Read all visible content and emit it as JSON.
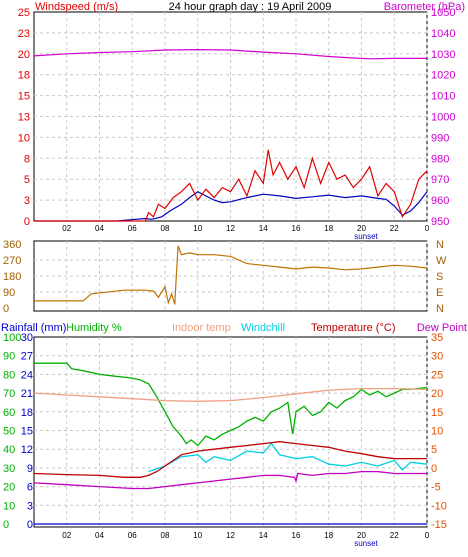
{
  "chart_data": [
    {
      "type": "line",
      "title": "24 hour graph day : 19 April 2009",
      "left_axis_title": "Windspeed (m/s)",
      "right_axis_title": "Barometer (hPa)",
      "sunset_label": "sunset",
      "x_ticks": [
        "02",
        "04",
        "06",
        "08",
        "10",
        "12",
        "14",
        "16",
        "18",
        "20",
        "22",
        "0"
      ],
      "x_range_hours": [
        0,
        24
      ],
      "y_left_ticks": [
        "0",
        "3",
        "5",
        "8",
        "10",
        "13",
        "15",
        "18",
        "20",
        "23",
        "25"
      ],
      "y_left_range": [
        0,
        25
      ],
      "y_right_ticks": [
        "950",
        "960",
        "970",
        "980",
        "990",
        "1000",
        "1010",
        "1020",
        "1030",
        "1040",
        "1050"
      ],
      "y_right_range": [
        950,
        1050
      ],
      "grid": true,
      "colors": {
        "gust": "#e00000",
        "wind": "#0000c0",
        "barometer": "#d000d0",
        "left_axis": "#e00000",
        "right_axis": "#d000d0"
      },
      "series": [
        {
          "name": "barometer",
          "axis": "right",
          "x": [
            -1.0,
            2,
            4,
            6,
            8,
            10,
            12,
            13,
            14,
            16,
            18,
            19.5,
            20.5,
            22,
            24
          ],
          "y": [
            1029.0,
            1030.0,
            1030.6,
            1031.0,
            1031.8,
            1032.0,
            1031.8,
            1031.3,
            1030.8,
            1030.0,
            1028.7,
            1028.0,
            1027.6,
            1027.8,
            1027.8
          ]
        },
        {
          "name": "wind speed",
          "axis": "left",
          "x": [
            -1.0,
            5.0,
            6.8,
            7.2,
            7.8,
            8.3,
            9.0,
            9.5,
            10.0,
            10.5,
            11.0,
            11.5,
            12.0,
            13.0,
            14.0,
            15.0,
            16.0,
            17.0,
            18.0,
            19.0,
            20.0,
            21.0,
            21.5,
            22.0,
            22.5,
            23.0,
            23.5,
            24.0
          ],
          "y": [
            0,
            0,
            0.3,
            0.2,
            0.5,
            1.2,
            2.0,
            2.8,
            3.5,
            3.0,
            2.5,
            2.2,
            2.3,
            2.8,
            3.2,
            3.0,
            2.7,
            2.9,
            3.1,
            2.8,
            3.0,
            2.7,
            2.6,
            1.8,
            0.7,
            1.2,
            2.2,
            3.5
          ]
        },
        {
          "name": "wind gust",
          "axis": "left",
          "x": [
            -1.0,
            6.8,
            7.0,
            7.3,
            7.6,
            8.0,
            8.5,
            9.0,
            9.5,
            10.0,
            10.5,
            11.0,
            11.5,
            12.0,
            12.5,
            13.0,
            13.5,
            14.0,
            14.3,
            14.6,
            15.0,
            15.5,
            16.0,
            16.5,
            17.0,
            17.5,
            18.0,
            18.5,
            19.0,
            19.5,
            20.0,
            20.5,
            21.0,
            21.5,
            22.0,
            22.5,
            23.0,
            23.5,
            24.0
          ],
          "y": [
            0,
            0,
            1.0,
            0.5,
            2.0,
            1.5,
            2.8,
            3.5,
            4.5,
            2.5,
            3.8,
            2.8,
            4.0,
            3.5,
            5.0,
            3.0,
            6.0,
            4.5,
            8.5,
            5.5,
            7.0,
            5.0,
            6.5,
            4.0,
            7.5,
            4.5,
            7.0,
            5.0,
            5.5,
            4.0,
            5.0,
            6.5,
            3.0,
            4.5,
            3.5,
            0.5,
            2.0,
            5.0,
            6.0
          ]
        }
      ]
    },
    {
      "type": "line",
      "left_ticks": [
        "360",
        "270",
        "180",
        "90",
        "0"
      ],
      "y_range": [
        0,
        360
      ],
      "right_labels": [
        "N",
        "W",
        "S",
        "E",
        "N"
      ],
      "x_range_hours": [
        0,
        24
      ],
      "colors": {
        "direction": "#c07000",
        "axis": "#a06000"
      },
      "series": [
        {
          "name": "wind direction",
          "x": [
            -1.0,
            2.5,
            3.0,
            3.5,
            5.5,
            6.0,
            6.8,
            7.3,
            7.6,
            8.0,
            8.2,
            8.4,
            8.6,
            8.7,
            8.8,
            9.0,
            9.5,
            10.0,
            11.0,
            12.0,
            12.5,
            13.0,
            14.0,
            15.0,
            16.0,
            17.0,
            18.0,
            19.0,
            20.0,
            21.0,
            22.0,
            23.0,
            24.0
          ],
          "y": [
            40,
            40,
            40,
            80,
            100,
            100,
            100,
            95,
            60,
            120,
            30,
            80,
            20,
            200,
            350,
            300,
            310,
            300,
            300,
            290,
            270,
            250,
            240,
            230,
            220,
            230,
            225,
            215,
            220,
            230,
            240,
            235,
            225
          ]
        }
      ]
    },
    {
      "type": "line",
      "legend": [
        "Rainfall (mm)",
        "Humidity %",
        "Indoor temp",
        "Windchill",
        "Temperature (°C)",
        "Dew Point"
      ],
      "sunset_label": "sunset",
      "x_ticks": [
        "02",
        "04",
        "06",
        "08",
        "10",
        "12",
        "14",
        "16",
        "18",
        "20",
        "22",
        "0"
      ],
      "x_range_hours": [
        0,
        24
      ],
      "axis_rain": {
        "ticks": [
          "0",
          "3",
          "6",
          "9",
          "12",
          "15",
          "18",
          "21",
          "24",
          "27",
          "30"
        ],
        "range": [
          0,
          30
        ]
      },
      "axis_humidity": {
        "ticks": [
          "0",
          "10",
          "20",
          "30",
          "40",
          "50",
          "60",
          "70",
          "80",
          "90",
          "100"
        ],
        "range": [
          0,
          100
        ]
      },
      "axis_temp": {
        "ticks": [
          "35",
          "30",
          "25",
          "20",
          "15",
          "10",
          "5",
          "0",
          "-5",
          "-10",
          "-15"
        ],
        "range": [
          -15,
          35
        ]
      },
      "grid": true,
      "colors": {
        "rain": "#0000d0",
        "humidity": "#00b000",
        "indoor": "#f0a080",
        "windchill": "#00d0e0",
        "temperature": "#c00000",
        "dewpoint": "#c000c0",
        "temp_axis": "#e05000"
      },
      "series": [
        {
          "name": "Humidity %",
          "axis": "humidity",
          "x": [
            -1.0,
            2.0,
            2.3,
            3.0,
            4.0,
            5.0,
            6.0,
            6.5,
            7.0,
            7.5,
            8.0,
            8.5,
            9.0,
            9.3,
            9.6,
            10.0,
            10.5,
            11.0,
            11.5,
            12.0,
            12.5,
            13.0,
            13.5,
            14.0,
            14.5,
            15.0,
            15.5,
            15.8,
            16.0,
            16.5,
            17.0,
            17.5,
            18.0,
            18.5,
            19.0,
            19.5,
            20.0,
            20.5,
            21.0,
            21.5,
            22.0,
            22.5,
            23.0,
            24.0
          ],
          "y": [
            86,
            86,
            83,
            82,
            80,
            79,
            78,
            77,
            75,
            68,
            60,
            52,
            47,
            43,
            45,
            42,
            47,
            45,
            48,
            50,
            52,
            55,
            57,
            55,
            60,
            62,
            65,
            48,
            60,
            63,
            58,
            60,
            65,
            62,
            66,
            68,
            72,
            69,
            71,
            68,
            70,
            72,
            72,
            73
          ]
        },
        {
          "name": "Indoor temp",
          "axis": "temp",
          "x": [
            -1.0,
            2.0,
            4.0,
            6.0,
            8.0,
            10.0,
            12.0,
            14.0,
            16.0,
            18.0,
            20.0,
            22.0,
            24.0
          ],
          "y": [
            20.0,
            19.5,
            19.0,
            18.5,
            18.0,
            17.8,
            18.0,
            18.8,
            19.8,
            20.8,
            21.2,
            21.2,
            21.0
          ]
        },
        {
          "name": "Windchill",
          "axis": "temp",
          "x": [
            7.0,
            8.0,
            9.0,
            10.0,
            10.5,
            11.0,
            12.0,
            13.0,
            14.0,
            14.5,
            15.0,
            16.0,
            17.0,
            18.0,
            19.0,
            20.0,
            21.0,
            22.0,
            22.5,
            23.0,
            24.0
          ],
          "y": [
            -1.0,
            0.5,
            3.0,
            3.5,
            1.5,
            3.0,
            2.0,
            4.5,
            4.0,
            6.5,
            3.5,
            2.5,
            3.0,
            1.0,
            0.5,
            1.5,
            0.5,
            2.0,
            -0.5,
            1.5,
            1.0
          ]
        },
        {
          "name": "Temperature (°C)",
          "axis": "temp",
          "x": [
            -1.0,
            2.0,
            4.0,
            5.5,
            6.5,
            7.0,
            7.5,
            8.0,
            8.5,
            9.0,
            10.0,
            11.0,
            12.0,
            13.0,
            14.0,
            15.0,
            16.0,
            17.0,
            18.0,
            19.0,
            20.0,
            21.0,
            22.0,
            24.0
          ],
          "y": [
            -1.5,
            -1.8,
            -2.0,
            -2.5,
            -2.5,
            -2.0,
            -1.0,
            0.5,
            2.0,
            3.5,
            4.5,
            5.0,
            5.5,
            6.0,
            6.5,
            7.0,
            6.5,
            6.0,
            5.5,
            4.5,
            3.8,
            3.0,
            2.5,
            2.5
          ]
        },
        {
          "name": "Dew Point",
          "axis": "temp",
          "x": [
            -1.0,
            2.0,
            4.0,
            6.0,
            7.0,
            8.0,
            9.0,
            10.0,
            11.0,
            12.0,
            13.0,
            14.0,
            15.0,
            15.9,
            16.0,
            16.1,
            17.0,
            18.0,
            19.0,
            20.0,
            21.0,
            22.0,
            24.0
          ],
          "y": [
            -4.0,
            -4.5,
            -5.0,
            -5.5,
            -5.5,
            -5.0,
            -4.5,
            -4.0,
            -3.5,
            -3.0,
            -2.5,
            -2.0,
            -2.0,
            -2.5,
            -3.5,
            -1.5,
            -2.0,
            -1.5,
            -1.5,
            -1.0,
            -1.0,
            -1.5,
            -1.5
          ]
        },
        {
          "name": "Rainfall (mm)",
          "axis": "rain",
          "x": [
            -1.0,
            24.0
          ],
          "y": [
            0,
            0
          ]
        }
      ]
    }
  ]
}
